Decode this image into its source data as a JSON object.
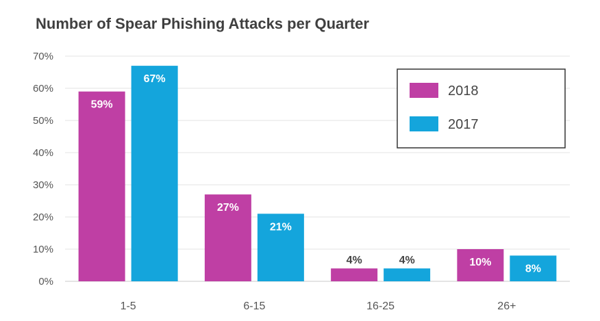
{
  "chart_data": {
    "type": "bar",
    "title": "Number of Spear Phishing Attacks per Quarter",
    "xlabel": "",
    "ylabel": "",
    "categories": [
      "1-5",
      "6-15",
      "16-25",
      "26+"
    ],
    "series": [
      {
        "name": "2018",
        "color": "#bf3fa4",
        "values": [
          59,
          27,
          4,
          10
        ],
        "labels": [
          "59%",
          "27%",
          "4%",
          "10%"
        ]
      },
      {
        "name": "2017",
        "color": "#14a5dc",
        "values": [
          67,
          21,
          4,
          8
        ],
        "labels": [
          "67%",
          "21%",
          "4%",
          "8%"
        ]
      }
    ],
    "ylim": [
      0,
      70
    ],
    "yticks": [
      0,
      10,
      20,
      30,
      40,
      50,
      60,
      70
    ],
    "ytick_labels": [
      "0%",
      "10%",
      "20%",
      "30%",
      "40%",
      "50%",
      "60%",
      "70%"
    ],
    "grid": true,
    "legend_position": "top-right"
  }
}
